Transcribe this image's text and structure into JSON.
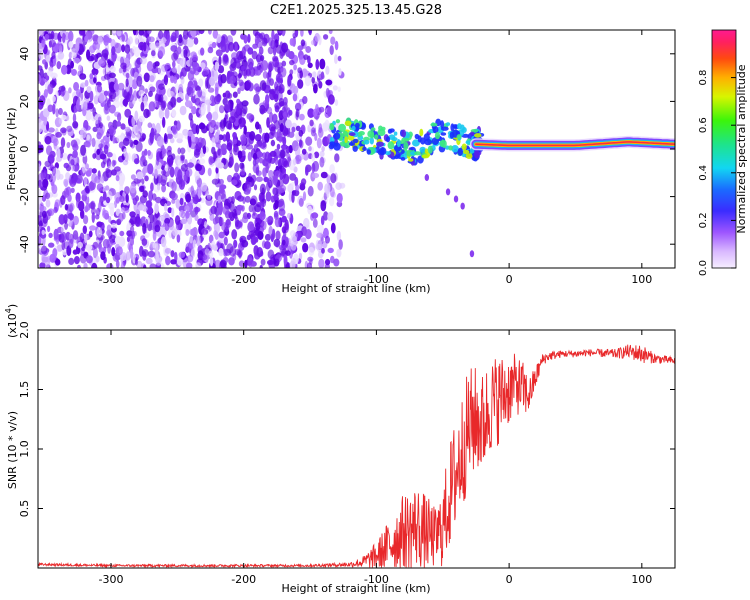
{
  "title": "C2E1.2025.325.13.45.G28",
  "colors": {
    "axis": "#000000",
    "snr_line": "#e8282a",
    "speckle": "#6a10e0",
    "colorbar_top": "#ff1a7a",
    "colorbar_bottom": "#e8d8ff"
  },
  "chart_data": [
    {
      "type": "heatmap",
      "title": "C2E1.2025.325.13.45.G28",
      "xlabel": "Height of straight line (km)",
      "ylabel": "Frequency (Hz)",
      "xlim": [
        -355,
        125
      ],
      "ylim": [
        -50,
        50
      ],
      "xticks": [
        -300,
        -200,
        -100,
        0,
        100
      ],
      "yticks": [
        -40,
        -20,
        0,
        20,
        40
      ],
      "colorbar": {
        "label": "Normalized spectral amplitude",
        "range": [
          0,
          1
        ],
        "ticks": [
          "0.0",
          "0.2",
          "0.4",
          "0.6",
          "0.8"
        ]
      },
      "features": {
        "broadband_noise_x_range": [
          -355,
          -125
        ],
        "signal_trace_points": [
          [
            -135,
            7
          ],
          [
            -110,
            5
          ],
          [
            -90,
            2
          ],
          [
            -70,
            0
          ],
          [
            -55,
            6
          ],
          [
            -40,
            4
          ],
          [
            -25,
            2
          ],
          [
            0,
            1.5
          ],
          [
            50,
            1.5
          ],
          [
            90,
            3
          ],
          [
            125,
            2
          ]
        ]
      }
    },
    {
      "type": "line",
      "xlabel": "Height of straight line (km)",
      "ylabel": "SNR (10 * v/v)",
      "yscale_label": "(x10",
      "yscale_exp": "4",
      "multiplier": 10000,
      "xlim": [
        -355,
        125
      ],
      "ylim": [
        0,
        2.0
      ],
      "xticks": [
        -300,
        -200,
        -100,
        0,
        100
      ],
      "yticks": [
        0.5,
        1.0,
        1.5,
        2.0
      ],
      "ytick_labels": [
        "0.5",
        "1.0",
        "1.5",
        "2.0"
      ],
      "series": [
        {
          "name": "SNR",
          "x": [
            -355,
            -300,
            -250,
            -200,
            -150,
            -120,
            -110,
            -100,
            -90,
            -80,
            -70,
            -60,
            -55,
            -50,
            -45,
            -40,
            -35,
            -30,
            -25,
            -20,
            -15,
            -10,
            -5,
            0,
            5,
            10,
            15,
            20,
            25,
            30,
            40,
            50,
            60,
            80,
            90,
            100,
            110,
            125
          ],
          "y": [
            0.03,
            0.02,
            0.02,
            0.02,
            0.02,
            0.03,
            0.05,
            0.1,
            0.2,
            0.3,
            0.35,
            0.28,
            0.25,
            0.35,
            0.6,
            0.8,
            1.0,
            1.2,
            1.25,
            1.2,
            1.35,
            1.4,
            1.45,
            1.5,
            1.55,
            1.5,
            1.45,
            1.6,
            1.75,
            1.78,
            1.8,
            1.8,
            1.81,
            1.8,
            1.82,
            1.8,
            1.76,
            1.74
          ],
          "noise": [
            0.01,
            0.01,
            0.01,
            0.01,
            0.01,
            0.02,
            0.05,
            0.12,
            0.22,
            0.32,
            0.36,
            0.3,
            0.25,
            0.35,
            0.45,
            0.5,
            0.5,
            0.5,
            0.45,
            0.45,
            0.4,
            0.4,
            0.35,
            0.3,
            0.25,
            0.25,
            0.15,
            0.1,
            0.05,
            0.04,
            0.03,
            0.03,
            0.03,
            0.04,
            0.06,
            0.08,
            0.04,
            0.03
          ]
        }
      ]
    }
  ]
}
